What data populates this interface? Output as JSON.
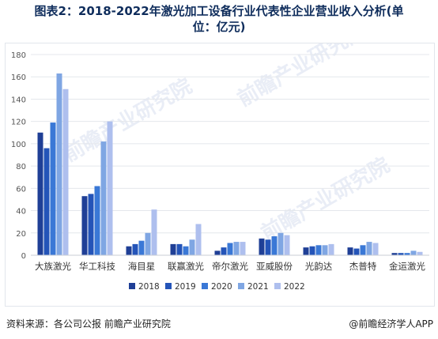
{
  "title_line1": "图表2：2018-2022年激光加工设备行业代表性企业营业收入分析(单",
  "title_line2": "位：亿元)",
  "source_text": "资料来源：各公司公报 前瞻产业研究院",
  "brand_text": "@前瞻经济学人APP",
  "chart_data": {
    "type": "bar",
    "categories": [
      "大族激光",
      "华工科技",
      "海目星",
      "联赢激光",
      "帝尔激光",
      "亚威股份",
      "光韵达",
      "杰普特",
      "金运激光"
    ],
    "series": [
      {
        "name": "2018",
        "color": "#1f3f96",
        "values": [
          110,
          53,
          8,
          10,
          4,
          15,
          7,
          7,
          2
        ]
      },
      {
        "name": "2019",
        "color": "#2454b8",
        "values": [
          96,
          55,
          10,
          10,
          7,
          14,
          8,
          6,
          2
        ]
      },
      {
        "name": "2020",
        "color": "#3a78d6",
        "values": [
          119,
          62,
          13,
          8,
          11,
          17,
          9,
          9,
          2
        ]
      },
      {
        "name": "2021",
        "color": "#7fa6e3",
        "values": [
          163,
          102,
          20,
          14,
          12,
          20,
          9,
          12,
          4
        ]
      },
      {
        "name": "2022",
        "color": "#aebfee",
        "values": [
          149,
          120,
          41,
          28,
          12,
          18,
          10,
          11,
          3
        ]
      }
    ],
    "ylim": [
      0,
      180
    ],
    "yticks": [
      0,
      20,
      40,
      60,
      80,
      100,
      120,
      140,
      160,
      180
    ],
    "grid": true,
    "legend_position": "bottom"
  },
  "watermark": "前瞻产业研究院"
}
